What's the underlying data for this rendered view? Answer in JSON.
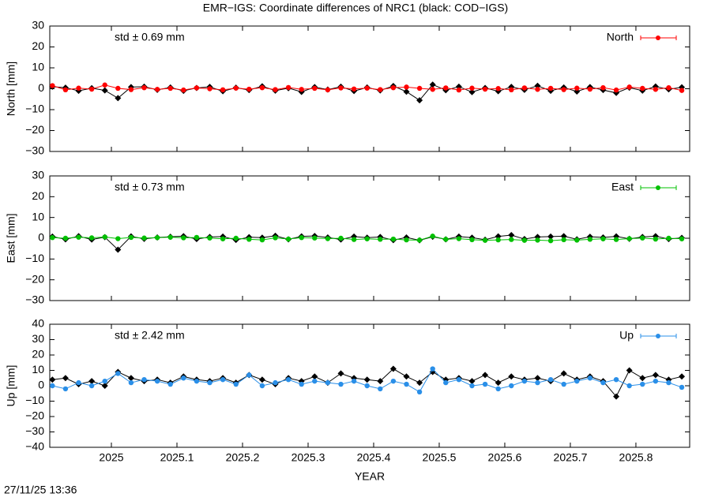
{
  "title": "EMR−IGS: Coordinate differences of NRC1 (black: COD−IGS)",
  "timestamp": "27/11/25 13:36",
  "chart_data": [
    {
      "type": "line",
      "ylabel": "North [mm]",
      "annotation": "std ± 0.69 mm",
      "annotation_color": "#ff0000",
      "xlim": [
        2024.906,
        2025.882
      ],
      "xticks": [
        2025,
        2025.1,
        2025.2,
        2025.3,
        2025.4,
        2025.5,
        2025.6,
        2025.7,
        2025.8
      ],
      "ylim": [
        -30,
        30
      ],
      "yticks": [
        {
          "value": -30,
          "label": "−30"
        },
        {
          "value": -20,
          "label": "−20"
        },
        {
          "value": -10,
          "label": "−10"
        },
        0,
        10,
        20,
        30
      ],
      "legend": "top-right",
      "x": [
        2024.91,
        2024.93,
        2024.95,
        2024.97,
        2024.99,
        2025.01,
        2025.03,
        2025.05,
        2025.07,
        2025.09,
        2025.11,
        2025.13,
        2025.15,
        2025.17,
        2025.19,
        2025.21,
        2025.23,
        2025.25,
        2025.27,
        2025.29,
        2025.31,
        2025.33,
        2025.35,
        2025.37,
        2025.39,
        2025.41,
        2025.43,
        2025.45,
        2025.47,
        2025.49,
        2025.51,
        2025.53,
        2025.55,
        2025.57,
        2025.59,
        2025.61,
        2025.63,
        2025.65,
        2025.67,
        2025.69,
        2025.71,
        2025.73,
        2025.75,
        2025.77,
        2025.79,
        2025.81,
        2025.83,
        2025.85,
        2025.87
      ],
      "series": [
        {
          "color": "#000000",
          "values": [
            1,
            0.5,
            -1,
            0.3,
            -0.8,
            -4.5,
            0.8,
            1,
            -0.5,
            0.6,
            -1,
            0.4,
            0.9,
            -1.2,
            0.5,
            -0.6,
            1.2,
            -0.9,
            0.3,
            -1.5,
            0.8,
            -0.4,
            1,
            -1.1,
            0.6,
            -0.8,
            1.3,
            -1.4,
            -5.5,
            2,
            -0.7,
            1,
            -1.6,
            0.4,
            -1.2,
            0.9,
            -0.5,
            1.4,
            -1,
            0.6,
            -1.3,
            0.8,
            -0.6,
            -2,
            0.5,
            -0.9,
            1.1,
            -0.3,
            0.7
          ]
        },
        {
          "name": "North",
          "color": "#ff0000",
          "values": [
            1.5,
            -0.5,
            0.3,
            -0.2,
            1.8,
            0.2,
            -0.4,
            0.5,
            -0.3,
            0.2,
            -0.6,
            0.4,
            0,
            -0.5,
            0.3,
            -0.2,
            0.5,
            -0.4,
            0.6,
            -0.3,
            0.2,
            -0.5,
            0.4,
            -0.1,
            0.3,
            -0.4,
            0.5,
            0.8,
            0.2,
            -0.3,
            0.4,
            -0.6,
            0.3,
            -0.2,
            0.1,
            -0.5,
            0.4,
            -0.3,
            0.2,
            -0.4,
            0.3,
            -0.2,
            0.5,
            -0.6,
            0.8,
            0.2,
            -0.3,
            0.5,
            -0.8
          ]
        }
      ]
    },
    {
      "type": "line",
      "ylabel": "East [mm]",
      "annotation": "std ± 0.73 mm",
      "annotation_color": "#00c000",
      "xlim": [
        2024.906,
        2025.882
      ],
      "xticks": [
        2025,
        2025.1,
        2025.2,
        2025.3,
        2025.4,
        2025.5,
        2025.6,
        2025.7,
        2025.8
      ],
      "ylim": [
        -30,
        30
      ],
      "yticks": [
        {
          "value": -30,
          "label": "−30"
        },
        {
          "value": -20,
          "label": "−20"
        },
        {
          "value": -10,
          "label": "−10"
        },
        0,
        10,
        20,
        30
      ],
      "legend": "top-right",
      "x": [
        2024.91,
        2024.93,
        2024.95,
        2024.97,
        2024.99,
        2025.01,
        2025.03,
        2025.05,
        2025.07,
        2025.09,
        2025.11,
        2025.13,
        2025.15,
        2025.17,
        2025.19,
        2025.21,
        2025.23,
        2025.25,
        2025.27,
        2025.29,
        2025.31,
        2025.33,
        2025.35,
        2025.37,
        2025.39,
        2025.41,
        2025.43,
        2025.45,
        2025.47,
        2025.49,
        2025.51,
        2025.53,
        2025.55,
        2025.57,
        2025.59,
        2025.61,
        2025.63,
        2025.65,
        2025.67,
        2025.69,
        2025.71,
        2025.73,
        2025.75,
        2025.77,
        2025.79,
        2025.81,
        2025.83,
        2025.85,
        2025.87
      ],
      "series": [
        {
          "color": "#000000",
          "values": [
            0.8,
            -0.5,
            1,
            -0.6,
            0.5,
            -5.5,
            0.9,
            -0.3,
            0.4,
            0.7,
            1,
            -0.4,
            0.6,
            0.8,
            -0.8,
            0.5,
            0.3,
            1.2,
            -0.5,
            0.9,
            1.1,
            0.4,
            -0.6,
            0.8,
            0.3,
            0.6,
            -0.9,
            0.4,
            -1,
            0.7,
            -0.5,
            0.8,
            0.3,
            -0.7,
            0.9,
            1.5,
            -0.4,
            0.6,
            0.8,
            1,
            -0.5,
            0.7,
            0.4,
            0.9,
            -0.3,
            0.6,
            1,
            -0.4,
            0.2
          ]
        },
        {
          "name": "East",
          "color": "#00c000",
          "values": [
            0.3,
            0,
            0.5,
            0.2,
            0.6,
            -0.2,
            0.4,
            0.1,
            0.3,
            0.5,
            0.2,
            0.4,
            0.1,
            -0.3,
            0,
            -0.5,
            -0.8,
            0.2,
            -0.4,
            0.3,
            0.1,
            -0.2,
            0,
            -0.6,
            -0.3,
            -0.5,
            -0.4,
            -0.8,
            -0.9,
            1,
            -0.5,
            -0.2,
            -0.7,
            -1,
            -0.8,
            -0.6,
            -1,
            -0.9,
            -1.2,
            -0.7,
            -0.9,
            -0.5,
            -0.3,
            -0.6,
            -0.2,
            0.1,
            -0.4,
            0,
            -0.3
          ]
        }
      ]
    },
    {
      "type": "line",
      "ylabel": "Up [mm]",
      "xlabel": "YEAR",
      "annotation": "std ± 2.42 mm",
      "annotation_color": "#2a8fe8",
      "xlim": [
        2024.906,
        2025.882
      ],
      "xticks": [
        2025,
        2025.1,
        2025.2,
        2025.3,
        2025.4,
        2025.5,
        2025.6,
        2025.7,
        2025.8
      ],
      "ylim": [
        -40,
        40
      ],
      "yticks": [
        {
          "value": -40,
          "label": "−40"
        },
        {
          "value": -30,
          "label": "−30"
        },
        {
          "value": -20,
          "label": "−20"
        },
        {
          "value": -10,
          "label": "−10"
        },
        0,
        10,
        20,
        30,
        40
      ],
      "legend": "top-right",
      "x": [
        2024.91,
        2024.93,
        2024.95,
        2024.97,
        2024.99,
        2025.01,
        2025.03,
        2025.05,
        2025.07,
        2025.09,
        2025.11,
        2025.13,
        2025.15,
        2025.17,
        2025.19,
        2025.21,
        2025.23,
        2025.25,
        2025.27,
        2025.29,
        2025.31,
        2025.33,
        2025.35,
        2025.37,
        2025.39,
        2025.41,
        2025.43,
        2025.45,
        2025.47,
        2025.49,
        2025.51,
        2025.53,
        2025.55,
        2025.57,
        2025.59,
        2025.61,
        2025.63,
        2025.65,
        2025.67,
        2025.69,
        2025.71,
        2025.73,
        2025.75,
        2025.77,
        2025.79,
        2025.81,
        2025.83,
        2025.85,
        2025.87
      ],
      "series": [
        {
          "color": "#000000",
          "values": [
            4,
            5,
            1,
            3,
            0,
            9,
            5,
            3,
            4,
            2,
            6,
            4,
            3,
            5,
            2,
            7,
            4,
            1,
            5,
            3,
            6,
            2,
            8,
            5,
            4,
            3,
            11,
            6,
            2,
            9,
            4,
            5,
            3,
            7,
            2,
            6,
            4,
            5,
            3,
            8,
            4,
            6,
            3,
            -7,
            10,
            5,
            7,
            4,
            6
          ]
        },
        {
          "name": "Up",
          "color": "#2a8fe8",
          "values": [
            0,
            -2,
            2,
            0,
            3,
            8,
            2,
            4,
            3,
            1,
            5,
            3,
            2,
            4,
            1,
            7,
            0,
            2,
            4,
            1,
            3,
            2,
            1,
            3,
            0,
            -2,
            3,
            1,
            -4,
            11,
            2,
            4,
            0,
            1,
            -2,
            0,
            3,
            2,
            4,
            1,
            3,
            5,
            2,
            4,
            0,
            1,
            3,
            2,
            -1
          ]
        }
      ]
    }
  ]
}
